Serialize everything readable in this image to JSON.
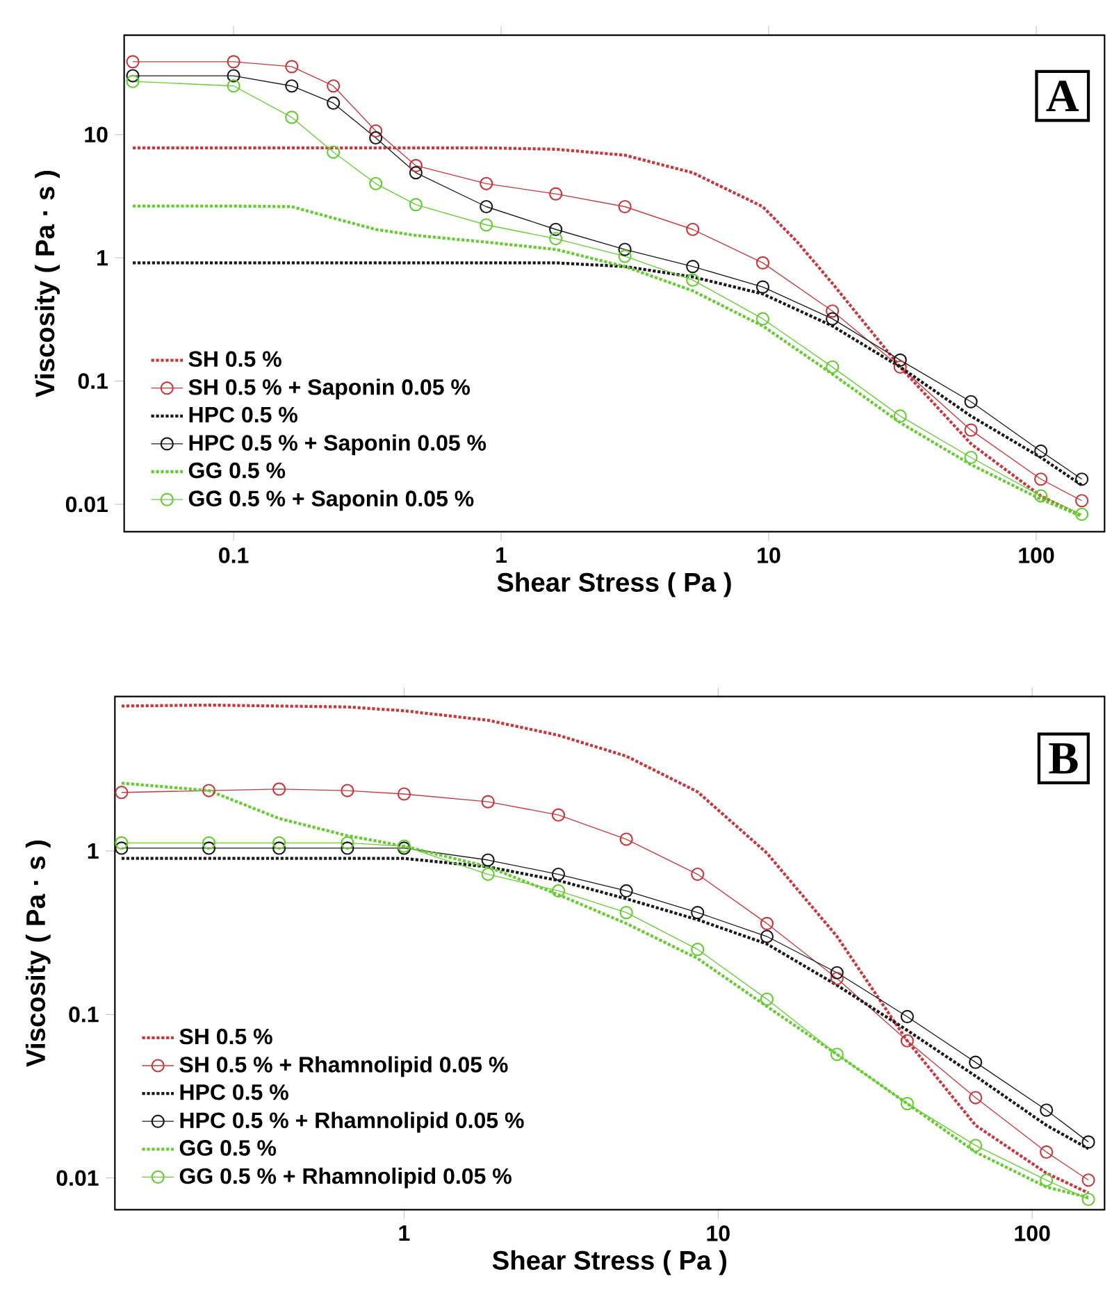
{
  "chart_data": [
    {
      "type": "line",
      "xlabel": "Shear Stress ( Pa )",
      "ylabel": "Viscosity ( Pa · s )",
      "log": "xy",
      "legend": "bottom left",
      "xlim": [
        0.039,
        180
      ],
      "ylim": [
        0.006,
        64
      ],
      "xticks": [
        0.1,
        1,
        10,
        100
      ],
      "yticks": [
        0.01,
        0.1,
        1,
        10
      ],
      "annotations": [
        "A"
      ],
      "series": [
        {
          "name": "SH 0.5 %",
          "color": "#c8373c",
          "marker": "none",
          "line_style": "dotted",
          "x": [
            0.042,
            0.1,
            0.165,
            0.236,
            0.34,
            0.48,
            0.88,
            1.6,
            2.9,
            5.2,
            9.5,
            12.8,
            17.3,
            31,
            57,
            104,
            148
          ],
          "values": [
            7.8,
            7.8,
            7.8,
            7.8,
            7.8,
            7.8,
            7.8,
            7.6,
            6.8,
            4.9,
            2.6,
            1.34,
            0.62,
            0.13,
            0.031,
            0.0117,
            0.008
          ]
        },
        {
          "name": "SH 0.5 % + Saponin 0.05 %",
          "color": "#c8373c",
          "marker": "circle",
          "line_style": "solid",
          "x": [
            0.042,
            0.1,
            0.165,
            0.236,
            0.34,
            0.48,
            0.88,
            1.6,
            2.9,
            5.2,
            9.5,
            17.3,
            31,
            57,
            104,
            148
          ],
          "values": [
            39,
            39,
            35.6,
            24.8,
            10.7,
            5.6,
            4.0,
            3.3,
            2.6,
            1.7,
            0.91,
            0.37,
            0.13,
            0.04,
            0.016,
            0.0107
          ]
        },
        {
          "name": "HPC 0.5 %",
          "color": "#1a1a1a",
          "marker": "none",
          "line_style": "dotted",
          "x": [
            0.042,
            0.1,
            0.165,
            0.236,
            0.34,
            0.48,
            0.88,
            1.6,
            2.9,
            5.2,
            9.5,
            17.3,
            31,
            57,
            104,
            148
          ],
          "values": [
            0.91,
            0.91,
            0.91,
            0.91,
            0.91,
            0.91,
            0.91,
            0.91,
            0.85,
            0.7,
            0.51,
            0.28,
            0.13,
            0.052,
            0.024,
            0.0143
          ]
        },
        {
          "name": "HPC 0.5 % + Saponin 0.05 %",
          "color": "#1a1a1a",
          "marker": "circle",
          "line_style": "solid",
          "x": [
            0.042,
            0.1,
            0.165,
            0.236,
            0.34,
            0.48,
            0.88,
            1.6,
            2.9,
            5.2,
            9.5,
            17.3,
            31,
            57,
            104,
            148
          ],
          "values": [
            30,
            30,
            24.8,
            18,
            9.4,
            4.9,
            2.6,
            1.7,
            1.17,
            0.85,
            0.58,
            0.32,
            0.148,
            0.068,
            0.027,
            0.016
          ]
        },
        {
          "name": "GG 0.5 %",
          "color": "#66cc33",
          "marker": "none",
          "line_style": "dotted",
          "x": [
            0.042,
            0.1,
            0.165,
            0.236,
            0.34,
            0.48,
            0.88,
            1.6,
            2.9,
            5.2,
            9.5,
            17.3,
            31,
            57,
            104,
            148
          ],
          "values": [
            2.63,
            2.63,
            2.6,
            2.1,
            1.7,
            1.52,
            1.34,
            1.17,
            0.85,
            0.54,
            0.28,
            0.114,
            0.046,
            0.021,
            0.011,
            0.008
          ]
        },
        {
          "name": "GG 0.5 % + Saponin 0.05 %",
          "color": "#66cc33",
          "marker": "circle",
          "line_style": "solid",
          "x": [
            0.042,
            0.1,
            0.165,
            0.236,
            0.34,
            0.48,
            0.88,
            1.6,
            2.9,
            5.2,
            9.5,
            17.3,
            31,
            57,
            104,
            148
          ],
          "values": [
            27,
            24.8,
            13.8,
            7.2,
            4.0,
            2.7,
            1.85,
            1.43,
            1.03,
            0.66,
            0.32,
            0.13,
            0.052,
            0.024,
            0.0117,
            0.0083
          ]
        }
      ]
    },
    {
      "type": "line",
      "xlabel": "Shear Stress ( Pa )",
      "ylabel": "Viscosity ( Pa · s )",
      "log": "xy",
      "legend": "bottom left",
      "xlim": [
        0.12,
        170
      ],
      "ylim": [
        0.0064,
        8.8
      ],
      "xticks": [
        1,
        10,
        100
      ],
      "yticks": [
        0.01,
        0.1,
        1
      ],
      "annotations": [
        "B"
      ],
      "series": [
        {
          "name": "SH 0.5 %",
          "color": "#c8373c",
          "marker": "none",
          "line_style": "dotted",
          "x": [
            0.126,
            0.239,
            0.4,
            0.66,
            1,
            1.85,
            3.1,
            5.1,
            8.6,
            14.3,
            23.9,
            40,
            66,
            111,
            151
          ],
          "values": [
            7.7,
            7.8,
            7.7,
            7.6,
            7.2,
            6.3,
            5.1,
            3.8,
            2.3,
            0.97,
            0.3,
            0.069,
            0.021,
            0.0107,
            0.0081
          ]
        },
        {
          "name": "SH 0.5 % + Rhamnolipid 0.05 %",
          "color": "#c8373c",
          "marker": "circle",
          "line_style": "solid",
          "x": [
            0.126,
            0.239,
            0.4,
            0.66,
            1,
            1.85,
            3.1,
            5.1,
            8.6,
            14.3,
            23.9,
            40,
            66,
            111,
            151
          ],
          "values": [
            2.28,
            2.34,
            2.39,
            2.34,
            2.23,
            2.0,
            1.66,
            1.18,
            0.72,
            0.36,
            0.166,
            0.069,
            0.031,
            0.0144,
            0.0097
          ]
        },
        {
          "name": "HPC 0.5 %",
          "color": "#1a1a1a",
          "marker": "none",
          "line_style": "dotted",
          "x": [
            0.126,
            0.239,
            0.4,
            0.66,
            1,
            1.85,
            3.1,
            5.1,
            8.6,
            14.3,
            23.9,
            40,
            66,
            111,
            151
          ],
          "values": [
            0.9,
            0.9,
            0.9,
            0.9,
            0.9,
            0.8,
            0.66,
            0.51,
            0.38,
            0.27,
            0.151,
            0.08,
            0.042,
            0.021,
            0.0151
          ]
        },
        {
          "name": "HPC 0.5 % + Rhamnolipid 0.05 %",
          "color": "#1a1a1a",
          "marker": "circle",
          "line_style": "solid",
          "x": [
            0.126,
            0.239,
            0.4,
            0.66,
            1,
            1.85,
            3.1,
            5.1,
            8.6,
            14.3,
            23.9,
            40,
            66,
            111,
            151
          ],
          "values": [
            1.04,
            1.04,
            1.04,
            1.04,
            1.04,
            0.88,
            0.72,
            0.57,
            0.42,
            0.3,
            0.18,
            0.097,
            0.051,
            0.026,
            0.0166
          ]
        },
        {
          "name": "GG 0.5 %",
          "color": "#66cc33",
          "marker": "none",
          "line_style": "dotted",
          "x": [
            0.126,
            0.239,
            0.4,
            0.66,
            1,
            1.85,
            3.1,
            5.1,
            8.6,
            14.3,
            23.9,
            40,
            66,
            111,
            151
          ],
          "values": [
            2.6,
            2.34,
            1.58,
            1.24,
            1.07,
            0.8,
            0.54,
            0.36,
            0.22,
            0.112,
            0.057,
            0.0285,
            0.0144,
            0.0088,
            0.0076
          ]
        },
        {
          "name": "GG 0.5 % + Rhamnolipid 0.05 %",
          "color": "#66cc33",
          "marker": "circle",
          "line_style": "solid",
          "x": [
            0.126,
            0.239,
            0.4,
            0.66,
            1,
            1.85,
            3.1,
            5.1,
            8.6,
            14.3,
            23.9,
            40,
            66,
            111,
            151
          ],
          "values": [
            1.12,
            1.12,
            1.12,
            1.12,
            1.07,
            0.72,
            0.57,
            0.42,
            0.25,
            0.124,
            0.057,
            0.0285,
            0.0158,
            0.0097,
            0.0074
          ]
        }
      ]
    }
  ]
}
